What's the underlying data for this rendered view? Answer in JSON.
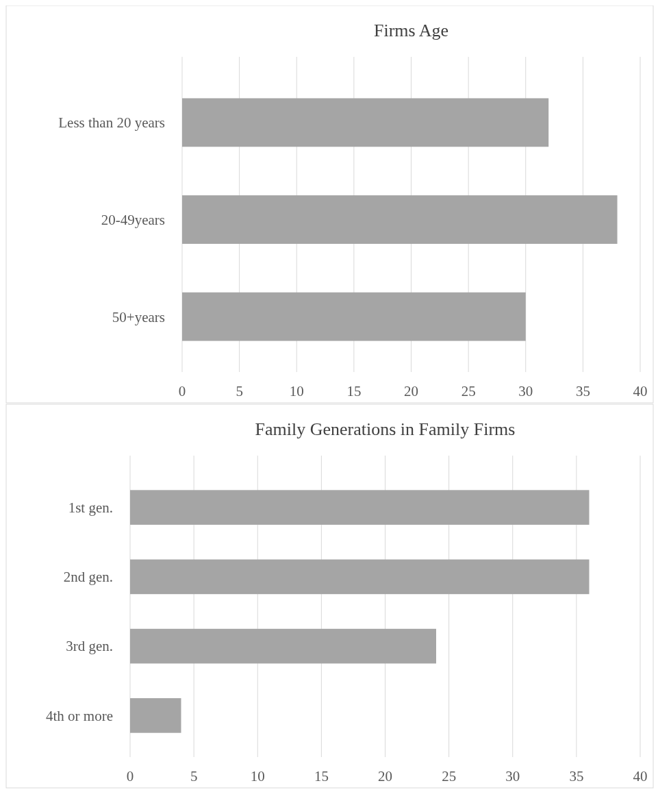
{
  "chart_data": [
    {
      "type": "bar",
      "orientation": "horizontal",
      "title": "Firms Age",
      "categories": [
        "Less than 20 years",
        "20-49years",
        "50+years"
      ],
      "values": [
        32,
        38,
        30
      ],
      "color": "#a5a5a5",
      "xlim": [
        0,
        40
      ],
      "xticks": [
        0,
        5,
        10,
        15,
        20,
        25,
        30,
        35,
        40
      ],
      "grid": "x"
    },
    {
      "type": "bar",
      "orientation": "horizontal",
      "title": "Family Generations in Family Firms",
      "categories": [
        "1st gen.",
        "2nd gen.",
        "3rd gen.",
        "4th or more"
      ],
      "values": [
        36,
        36,
        24,
        4
      ],
      "color": "#a5a5a5",
      "xlim": [
        0,
        40
      ],
      "xticks": [
        0,
        5,
        10,
        15,
        20,
        25,
        30,
        35,
        40
      ],
      "grid": "x"
    }
  ]
}
